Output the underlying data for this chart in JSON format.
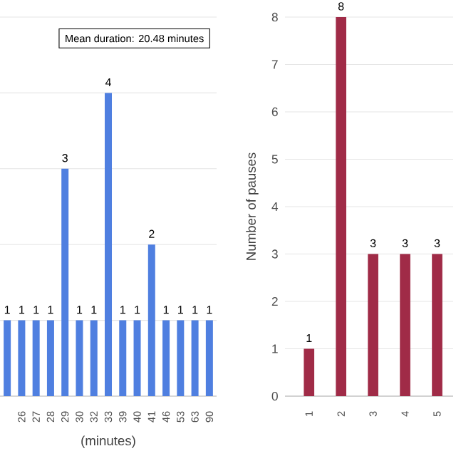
{
  "chart_data": [
    {
      "type": "bar",
      "xlabel": "(minutes)",
      "categories": [
        null,
        "26",
        "27",
        "28",
        "29",
        "30",
        "32",
        "33",
        "39",
        "40",
        "41",
        "46",
        "53",
        "63",
        "90"
      ],
      "values": [
        1,
        1,
        1,
        1,
        3,
        1,
        1,
        4,
        1,
        1,
        2,
        1,
        1,
        1,
        1
      ],
      "color": "#4f7fe0",
      "ylim": [
        0,
        5
      ],
      "yticks": [
        {
          "value": 1,
          "label": null
        },
        {
          "value": 2,
          "label": null
        },
        {
          "value": 3,
          "label": null
        },
        {
          "value": 4,
          "label": null
        },
        {
          "value": 5,
          "label": null
        }
      ],
      "tick_labels": "x",
      "grid": "y",
      "data_labels": true,
      "annotations": [
        "Mean duration: 20.48 minutes"
      ]
    },
    {
      "type": "bar",
      "ylabel": "Number of pauses",
      "categories": [
        "1",
        "2",
        "3",
        "4",
        "5"
      ],
      "values": [
        1,
        8,
        3,
        3,
        3
      ],
      "color": "#a02b47",
      "ylim": [
        0,
        8
      ],
      "yticks": [
        0,
        1,
        2,
        3,
        4,
        5,
        6,
        7,
        8
      ],
      "grid": "y",
      "data_labels": true
    }
  ]
}
